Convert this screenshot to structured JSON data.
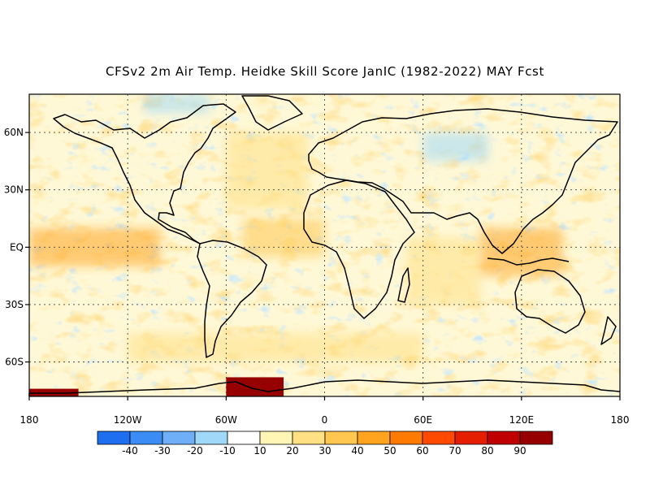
{
  "title": "CFSv2 2m Air Temp. Heidke Skill Score JanIC (1982-2022) MAY Fcst",
  "map": {
    "lat_ticks": [
      {
        "label": "60N",
        "value": 60
      },
      {
        "label": "30N",
        "value": 30
      },
      {
        "label": "EQ",
        "value": 0
      },
      {
        "label": "30S",
        "value": -30
      },
      {
        "label": "60S",
        "value": -60
      }
    ],
    "lon_ticks": [
      {
        "label": "180",
        "value": -180
      },
      {
        "label": "120W",
        "value": -120
      },
      {
        "label": "60W",
        "value": -60
      },
      {
        "label": "0",
        "value": 0
      },
      {
        "label": "60E",
        "value": 60
      },
      {
        "label": "120E",
        "value": 120
      },
      {
        "label": "180",
        "value": 180
      }
    ],
    "lat_range": [
      -78,
      80
    ],
    "lon_range": [
      -180,
      180
    ],
    "gridlines": "dotted",
    "field_note_regions": [
      {
        "region": "central-pacific-equator",
        "lon": [
          -180,
          -100
        ],
        "lat": [
          -10,
          10
        ],
        "skill": 40
      },
      {
        "region": "maritime-continent",
        "lon": [
          95,
          145
        ],
        "lat": [
          -15,
          10
        ],
        "skill": 40
      },
      {
        "region": "antarctic-peninsula-weddell",
        "lon": [
          -60,
          -25
        ],
        "lat": [
          -78,
          -68
        ],
        "skill": 90
      },
      {
        "region": "ross-ice-shelf-edge",
        "lon": [
          -180,
          -150
        ],
        "lat": [
          -78,
          -74
        ],
        "skill": 90
      },
      {
        "region": "north-atlantic",
        "lon": [
          -60,
          -10
        ],
        "lat": [
          20,
          60
        ],
        "skill": 20
      },
      {
        "region": "central-asia",
        "lon": [
          60,
          100
        ],
        "lat": [
          45,
          60
        ],
        "skill": -20
      },
      {
        "region": "arctic-canada",
        "lon": [
          -110,
          -70
        ],
        "lat": [
          70,
          80
        ],
        "skill": -20
      },
      {
        "region": "southern-ocean",
        "lon": [
          -120,
          60
        ],
        "lat": [
          -60,
          -45
        ],
        "skill": 20
      },
      {
        "region": "tropical-atlantic",
        "lon": [
          -50,
          0
        ],
        "lat": [
          -5,
          15
        ],
        "skill": 30
      },
      {
        "region": "indian-ocean",
        "lon": [
          50,
          95
        ],
        "lat": [
          -30,
          5
        ],
        "skill": 20
      }
    ]
  },
  "colorbar": {
    "labels": [
      "-40",
      "-30",
      "-20",
      "-10",
      "10",
      "20",
      "30",
      "40",
      "50",
      "60",
      "70",
      "80",
      "90"
    ],
    "colors": [
      "#1e6ef0",
      "#3c8cf5",
      "#6eaff8",
      "#a0d8fa",
      "#ffffff",
      "#fff5b4",
      "#ffe083",
      "#ffc650",
      "#ffa41e",
      "#ff7a00",
      "#ff4a00",
      "#e61e00",
      "#c00000",
      "#960000"
    ]
  },
  "chart_data": {
    "type": "heatmap",
    "title": "CFSv2 2m Air Temp. Heidke Skill Score JanIC (1982-2022) MAY Fcst",
    "xlabel": "",
    "ylabel": "",
    "xlim": [
      -180,
      180
    ],
    "ylim": [
      -78,
      80
    ],
    "x_ticks": [
      "180",
      "120W",
      "60W",
      "0",
      "60E",
      "120E",
      "180"
    ],
    "y_ticks": [
      "60N",
      "30N",
      "EQ",
      "30S",
      "60S"
    ],
    "colorbar_ticks": [
      -40,
      -30,
      -20,
      -10,
      10,
      20,
      30,
      40,
      50,
      60,
      70,
      80,
      90
    ],
    "grid": true
  }
}
